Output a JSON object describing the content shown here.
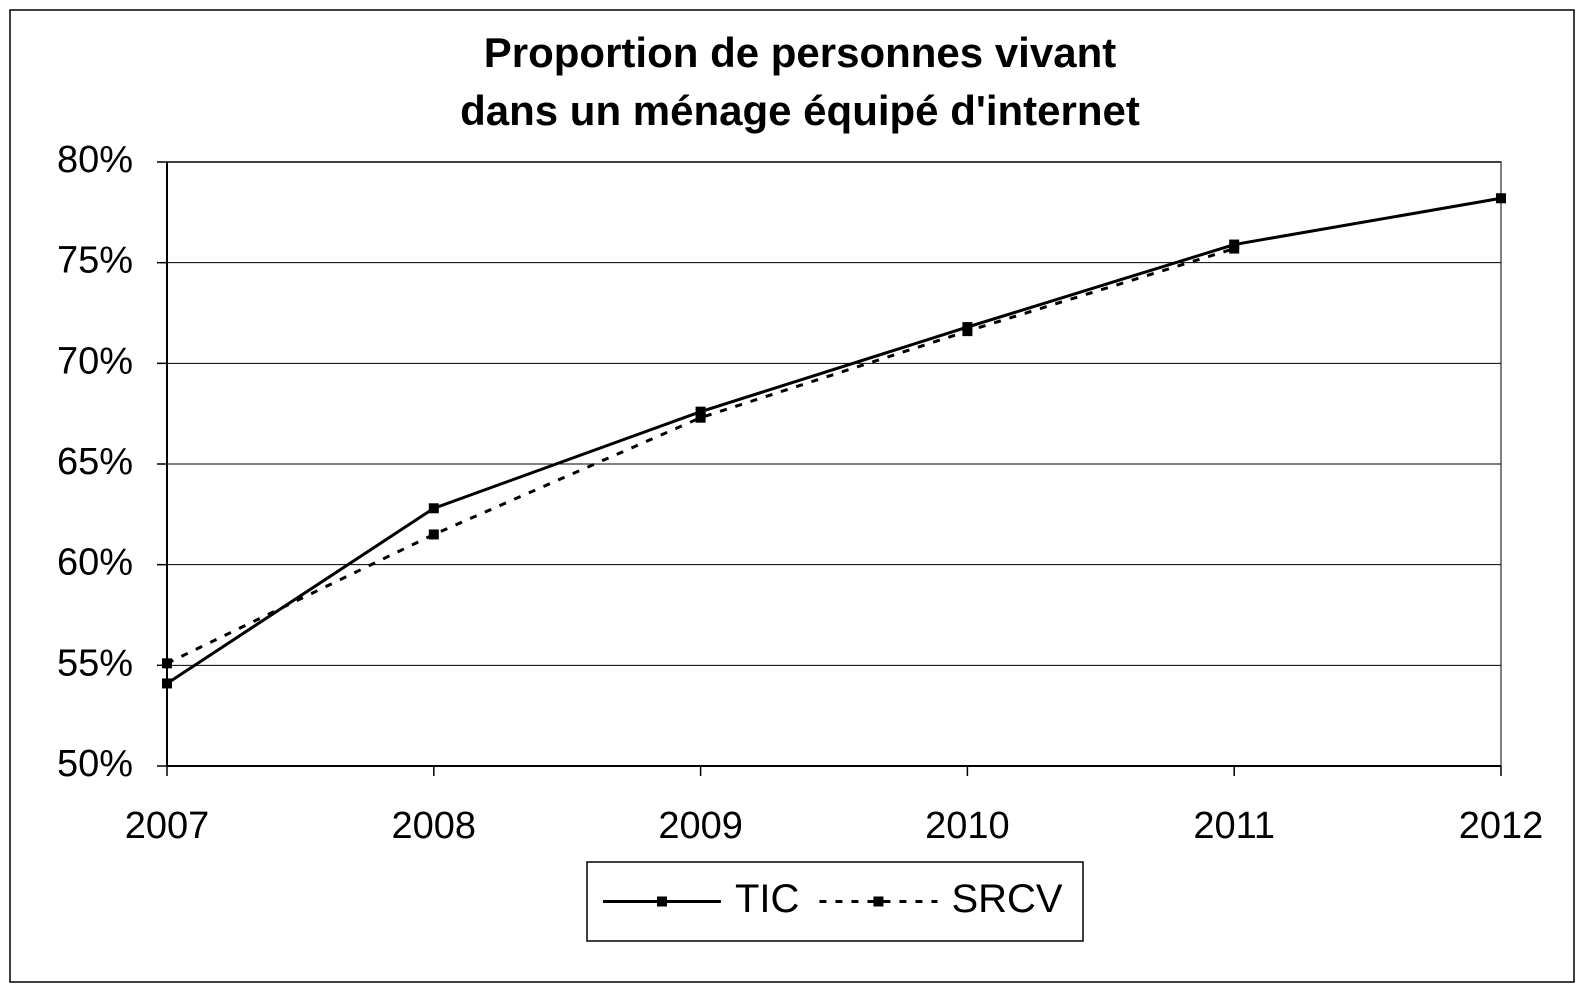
{
  "chart_data": {
    "type": "line",
    "title": [
      "Proportion de personnes vivant",
      "dans un ménage équipé d'internet"
    ],
    "categories": [
      "2007",
      "2008",
      "2009",
      "2010",
      "2011",
      "2012"
    ],
    "series": [
      {
        "name": "TIC",
        "color": "#000000",
        "line_style": "solid",
        "values": [
          54.1,
          62.8,
          67.6,
          71.8,
          75.9,
          78.2
        ]
      },
      {
        "name": "SRCV",
        "color": "#000000",
        "line_style": "dotted",
        "values": [
          55.1,
          61.5,
          67.3,
          71.6,
          75.7,
          null
        ]
      }
    ],
    "ylim": [
      50,
      80
    ],
    "yticks": [
      {
        "value": 50,
        "label": "50%"
      },
      {
        "value": 55,
        "label": "55%"
      },
      {
        "value": 60,
        "label": "60%"
      },
      {
        "value": 65,
        "label": "65%"
      },
      {
        "value": 70,
        "label": "70%"
      },
      {
        "value": 75,
        "label": "75%"
      },
      {
        "value": 80,
        "label": "80%"
      }
    ],
    "grid": true,
    "legend": "bottom"
  }
}
